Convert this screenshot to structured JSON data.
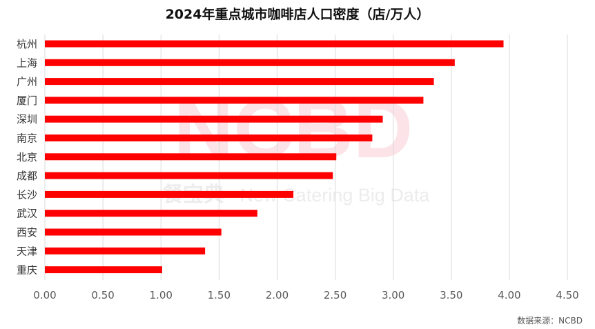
{
  "chart_data": {
    "type": "bar",
    "orientation": "horizontal",
    "title": "2024年重点城市咖啡店人口密度（店/万人）",
    "categories": [
      "杭州",
      "上海",
      "广州",
      "厦门",
      "深圳",
      "南京",
      "北京",
      "成都",
      "长沙",
      "武汉",
      "西安",
      "天津",
      "重庆"
    ],
    "values": [
      3.95,
      3.53,
      3.35,
      3.26,
      2.91,
      2.82,
      2.51,
      2.48,
      2.14,
      1.83,
      1.52,
      1.38,
      1.01
    ],
    "xlim": [
      0,
      4.5
    ],
    "xticks": [
      "0.00",
      "0.50",
      "1.00",
      "1.50",
      "2.00",
      "2.50",
      "3.00",
      "3.50",
      "4.00",
      "4.50"
    ],
    "xlabel": "",
    "ylabel": "",
    "grid": "vertical",
    "bar_color": "#ff0000",
    "legend": "none"
  },
  "watermark": {
    "logo": "NCBD",
    "brand_cn": "餐宝典",
    "brand_en": "New Catering Big Data"
  },
  "source": "数据来源：NCBD"
}
